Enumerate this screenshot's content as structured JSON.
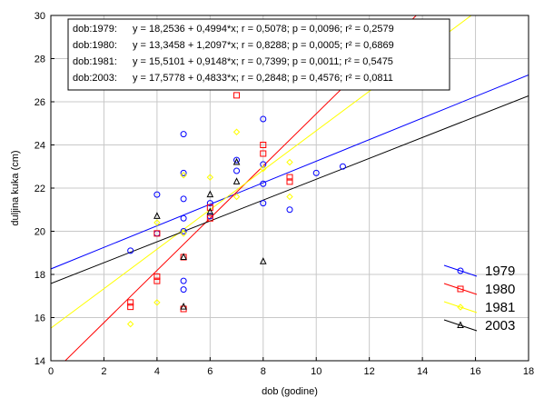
{
  "chart_data": {
    "type": "scatter",
    "title": "",
    "xlabel": "dob (godine)",
    "ylabel": "duljina kuka (cm)",
    "xlim": [
      0,
      18
    ],
    "ylim": [
      14,
      30
    ],
    "xticks": [
      "0",
      "2",
      "4",
      "6",
      "8",
      "10",
      "12",
      "14",
      "16",
      "18"
    ],
    "yticks": [
      "14",
      "16",
      "18",
      "20",
      "22",
      "24",
      "26",
      "28",
      "30"
    ],
    "grid": true,
    "legend_position": "bottom-right",
    "equations": [
      {
        "label": "dob:1979:",
        "text": "y = 18,2536 + 0,4994*x; r = 0,5078; p = 0,0096; r² = 0,2579"
      },
      {
        "label": "dob:1980:",
        "text": "y = 13,3458 + 1,2097*x; r = 0,8288; p = 0,0005; r² = 0,6869"
      },
      {
        "label": "dob:1981:",
        "text": "y = 15,5101 + 0,9148*x; r = 0,7399; p = 0,0011; r² = 0,5475"
      },
      {
        "label": "dob:2003:",
        "text": "y = 17,5778 + 0,4833*x; r = 0,2848; p = 0,4576; r² = 0,0811"
      }
    ],
    "series": [
      {
        "name": "1979",
        "color": "#0000ff",
        "marker": "circle",
        "intercept": 18.2536,
        "slope": 0.4994,
        "points": [
          [
            3,
            19.1
          ],
          [
            4,
            21.7
          ],
          [
            4,
            19.9
          ],
          [
            5,
            24.5
          ],
          [
            5,
            22.7
          ],
          [
            5,
            21.5
          ],
          [
            5,
            20.6
          ],
          [
            5,
            20.0
          ],
          [
            5,
            17.7
          ],
          [
            5,
            17.3
          ],
          [
            6,
            21.3
          ],
          [
            6,
            20.7
          ],
          [
            7,
            23.3
          ],
          [
            7,
            22.8
          ],
          [
            8,
            25.2
          ],
          [
            8,
            23.1
          ],
          [
            8,
            22.2
          ],
          [
            8,
            21.3
          ],
          [
            9,
            21.0
          ],
          [
            10,
            22.7
          ],
          [
            11,
            23.0
          ]
        ]
      },
      {
        "name": "1980",
        "color": "#ff0000",
        "marker": "square",
        "intercept": 13.3458,
        "slope": 1.2097,
        "points": [
          [
            3,
            16.7
          ],
          [
            3,
            16.5
          ],
          [
            4,
            17.9
          ],
          [
            4,
            17.7
          ],
          [
            4,
            19.9
          ],
          [
            5,
            16.4
          ],
          [
            5,
            18.8
          ],
          [
            6,
            20.6
          ],
          [
            6,
            21.1
          ],
          [
            7,
            26.3
          ],
          [
            8,
            24.0
          ],
          [
            8,
            23.6
          ],
          [
            9,
            22.5
          ],
          [
            9,
            22.3
          ]
        ]
      },
      {
        "name": "1981",
        "color": "#ffff00",
        "marker": "diamond",
        "intercept": 15.5101,
        "slope": 0.9148,
        "points": [
          [
            3,
            15.7
          ],
          [
            4,
            16.7
          ],
          [
            4,
            20.4
          ],
          [
            5,
            19.9
          ],
          [
            5,
            22.6
          ],
          [
            6,
            22.5
          ],
          [
            7,
            24.6
          ],
          [
            7,
            21.6
          ],
          [
            8,
            22.9
          ],
          [
            9,
            23.2
          ],
          [
            9,
            21.6
          ]
        ]
      },
      {
        "name": "2003",
        "color": "#000000",
        "marker": "triangle",
        "intercept": 17.5778,
        "slope": 0.4833,
        "points": [
          [
            4,
            20.7
          ],
          [
            5,
            18.8
          ],
          [
            5,
            16.5
          ],
          [
            6,
            21.7
          ],
          [
            6,
            20.9
          ],
          [
            7,
            23.2
          ],
          [
            7,
            22.3
          ],
          [
            8,
            18.6
          ]
        ]
      }
    ]
  }
}
